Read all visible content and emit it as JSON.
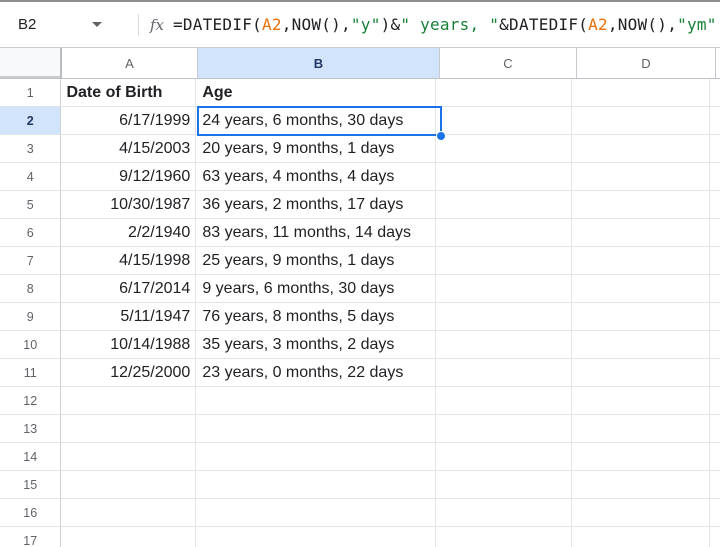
{
  "formula_bar": {
    "cell_reference": "B2",
    "fx_label": "fx",
    "formula_full": "=DATEDIF(A2,NOW(),\"y\")&\" years, \"&DATEDIF(A2,NOW(),\"ym\"",
    "formula_segments": [
      {
        "text": "=DATEDIF(",
        "type": "default"
      },
      {
        "text": "A2",
        "type": "ref"
      },
      {
        "text": ",NOW(),",
        "type": "default"
      },
      {
        "text": "\"y\"",
        "type": "string"
      },
      {
        "text": ")&",
        "type": "default"
      },
      {
        "text": "\" years, \"",
        "type": "string"
      },
      {
        "text": "&DATEDIF(",
        "type": "default"
      },
      {
        "text": "A2",
        "type": "ref"
      },
      {
        "text": ",NOW(),",
        "type": "default"
      },
      {
        "text": "\"ym\"",
        "type": "string"
      }
    ]
  },
  "grid": {
    "column_headers": [
      "A",
      "B",
      "C",
      "D"
    ],
    "selected_column": "B",
    "selected_row": 2,
    "selected_cell": "B2",
    "rows": [
      {
        "n": 1,
        "a": "Date of Birth",
        "b": "Age",
        "bold": true
      },
      {
        "n": 2,
        "a": "6/17/1999",
        "b": "24 years, 6 months, 30 days"
      },
      {
        "n": 3,
        "a": "4/15/2003",
        "b": "20 years, 9 months, 1 days"
      },
      {
        "n": 4,
        "a": "9/12/1960",
        "b": "63 years, 4 months, 4 days"
      },
      {
        "n": 5,
        "a": "10/30/1987",
        "b": "36 years, 2 months, 17 days"
      },
      {
        "n": 6,
        "a": "2/2/1940",
        "b": "83 years, 11 months, 14 days"
      },
      {
        "n": 7,
        "a": "4/15/1998",
        "b": "25 years, 9 months, 1 days"
      },
      {
        "n": 8,
        "a": "6/17/2014",
        "b": "9 years, 6 months, 30 days"
      },
      {
        "n": 9,
        "a": "5/11/1947",
        "b": "76 years, 8 months, 5 days"
      },
      {
        "n": 10,
        "a": "10/14/1988",
        "b": "35 years, 3 months, 2 days"
      },
      {
        "n": 11,
        "a": "12/25/2000",
        "b": "23 years, 0 months, 22 days"
      },
      {
        "n": 12,
        "a": "",
        "b": ""
      },
      {
        "n": 13,
        "a": "",
        "b": ""
      },
      {
        "n": 14,
        "a": "",
        "b": ""
      },
      {
        "n": 15,
        "a": "",
        "b": ""
      },
      {
        "n": 16,
        "a": "",
        "b": ""
      },
      {
        "n": 17,
        "a": "",
        "b": ""
      }
    ]
  },
  "colors": {
    "accent_blue": "#1a73e8",
    "selected_header_bg": "#d2e3fc",
    "selected_header_text": "#1f3864",
    "formula_default": "#202124",
    "formula_ref": "#e8710a",
    "formula_string": "#188038",
    "header_text": "#5f6368",
    "cell_text": "#202124",
    "gridline": "#e3e4e7"
  }
}
